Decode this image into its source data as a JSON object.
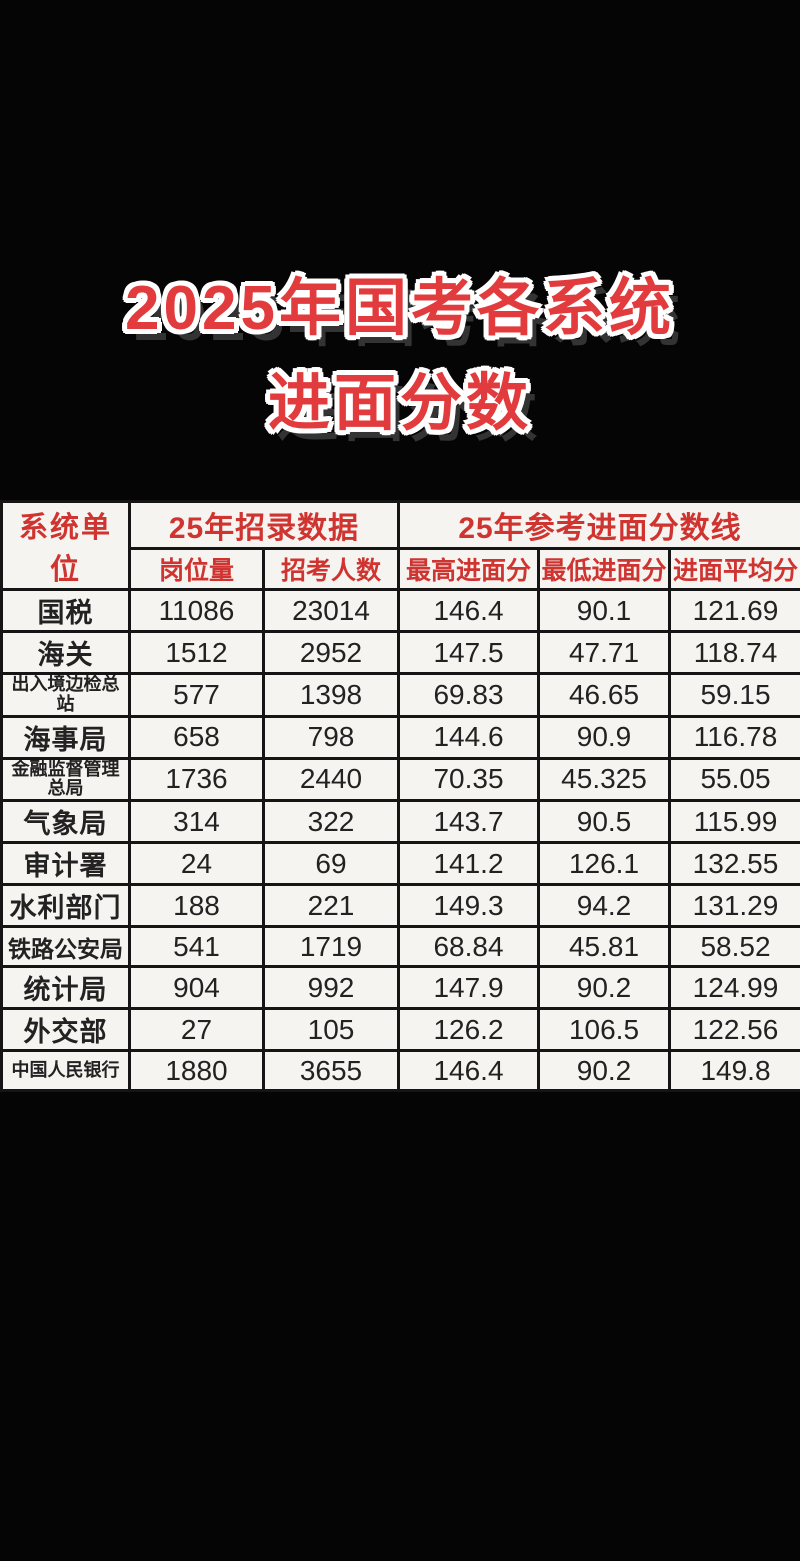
{
  "page": {
    "background_color": "#050505",
    "table_background_color": "#f6f4f0",
    "border_color": "#151515",
    "title_color": "#e23b3d",
    "header_text_color": "#cf3431",
    "body_text_color": "#222222"
  },
  "title": {
    "line1": "2025年国考各系统",
    "line2": "进面分数"
  },
  "table": {
    "corner_header": "系统单位",
    "group_headers": [
      {
        "label": "25年招录数据"
      },
      {
        "label": "25年参考进面分数线"
      }
    ],
    "sub_headers": [
      "岗位量",
      "招考人数",
      "最高进面分",
      "最低进面分",
      "进面平均分"
    ],
    "rows": [
      {
        "unit": "国税",
        "positions": "11086",
        "recruits": "23014",
        "max": "146.4",
        "min": "90.1",
        "avg": "121.69"
      },
      {
        "unit": "海关",
        "positions": "1512",
        "recruits": "2952",
        "max": "147.5",
        "min": "47.71",
        "avg": "118.74"
      },
      {
        "unit": "出入境边检总站",
        "positions": "577",
        "recruits": "1398",
        "max": "69.83",
        "min": "46.65",
        "avg": "59.15"
      },
      {
        "unit": "海事局",
        "positions": "658",
        "recruits": "798",
        "max": "144.6",
        "min": "90.9",
        "avg": "116.78"
      },
      {
        "unit": "金融监督管理总局",
        "positions": "1736",
        "recruits": "2440",
        "max": "70.35",
        "min": "45.325",
        "avg": "55.05"
      },
      {
        "unit": "气象局",
        "positions": "314",
        "recruits": "322",
        "max": "143.7",
        "min": "90.5",
        "avg": "115.99"
      },
      {
        "unit": "审计署",
        "positions": "24",
        "recruits": "69",
        "max": "141.2",
        "min": "126.1",
        "avg": "132.55"
      },
      {
        "unit": "水利部门",
        "positions": "188",
        "recruits": "221",
        "max": "149.3",
        "min": "94.2",
        "avg": "131.29"
      },
      {
        "unit": "铁路公安局",
        "positions": "541",
        "recruits": "1719",
        "max": "68.84",
        "min": "45.81",
        "avg": "58.52"
      },
      {
        "unit": "统计局",
        "positions": "904",
        "recruits": "992",
        "max": "147.9",
        "min": "90.2",
        "avg": "124.99"
      },
      {
        "unit": "外交部",
        "positions": "27",
        "recruits": "105",
        "max": "126.2",
        "min": "106.5",
        "avg": "122.56"
      },
      {
        "unit": "中国人民银行",
        "positions": "1880",
        "recruits": "3655",
        "max": "146.4",
        "min": "90.2",
        "avg": "149.8"
      }
    ]
  },
  "chart_data": {
    "type": "table",
    "title": "2025年国考各系统进面分数",
    "columns": [
      "系统单位",
      "岗位量",
      "招考人数",
      "最高进面分",
      "最低进面分",
      "进面平均分"
    ],
    "column_groups": [
      {
        "label": "25年招录数据",
        "columns": [
          "岗位量",
          "招考人数"
        ]
      },
      {
        "label": "25年参考进面分数线",
        "columns": [
          "最高进面分",
          "最低进面分",
          "进面平均分"
        ]
      }
    ],
    "rows": [
      [
        "国税",
        11086,
        23014,
        146.4,
        90.1,
        121.69
      ],
      [
        "海关",
        1512,
        2952,
        147.5,
        47.71,
        118.74
      ],
      [
        "出入境边检总站",
        577,
        1398,
        69.83,
        46.65,
        59.15
      ],
      [
        "海事局",
        658,
        798,
        144.6,
        90.9,
        116.78
      ],
      [
        "金融监督管理总局",
        1736,
        2440,
        70.35,
        45.325,
        55.05
      ],
      [
        "气象局",
        314,
        322,
        143.7,
        90.5,
        115.99
      ],
      [
        "审计署",
        24,
        69,
        141.2,
        126.1,
        132.55
      ],
      [
        "水利部门",
        188,
        221,
        149.3,
        94.2,
        131.29
      ],
      [
        "铁路公安局",
        541,
        1719,
        68.84,
        45.81,
        58.52
      ],
      [
        "统计局",
        904,
        992,
        147.9,
        90.2,
        124.99
      ],
      [
        "外交部",
        27,
        105,
        126.2,
        106.5,
        122.56
      ],
      [
        "中国人民银行",
        1880,
        3655,
        146.4,
        90.2,
        149.8
      ]
    ]
  }
}
